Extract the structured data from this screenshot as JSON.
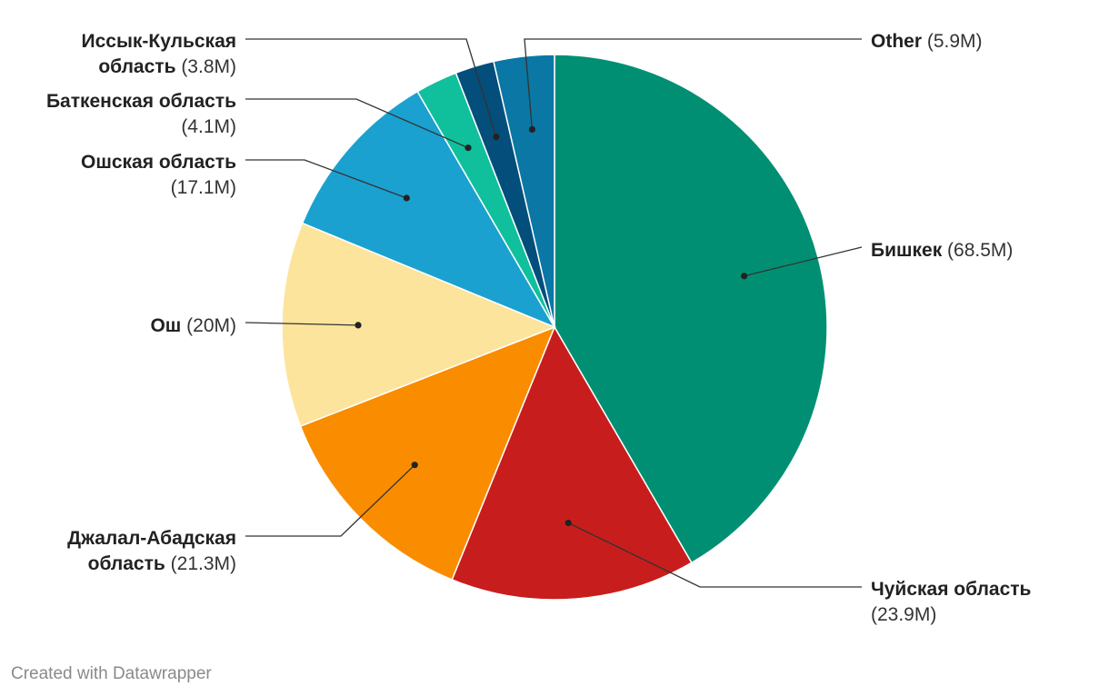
{
  "chart_data": {
    "type": "pie",
    "start": "12 o'clock",
    "direction": "clockwise",
    "slices": [
      {
        "name": "Бишкек",
        "value": 68.5,
        "value_label": "(68.5M)",
        "color": "#018f73"
      },
      {
        "name": "Чуйская область",
        "value": 23.9,
        "value_label": "(23.9M)",
        "color": "#c71e1d"
      },
      {
        "name": "Джалал-Абадская область",
        "value": 21.3,
        "value_label": "(21.3M)",
        "color": "#fa8c00"
      },
      {
        "name": "Ош",
        "value": 20.0,
        "value_label": "(20M)",
        "color": "#fde49c"
      },
      {
        "name": "Ошская область",
        "value": 17.1,
        "value_label": "(17.1M)",
        "color": "#1aa1d0"
      },
      {
        "name": "Баткенская область",
        "value": 4.1,
        "value_label": "(4.1M)",
        "color": "#10c09d"
      },
      {
        "name": "Иссык-Кульская область",
        "value": 3.8,
        "value_label": "(3.8M)",
        "color": "#034e7b"
      },
      {
        "name": "Other",
        "value": 5.9,
        "value_label": "(5.9M)",
        "color": "#0a77a4"
      }
    ]
  },
  "footer": {
    "credit": "Created with Datawrapper"
  }
}
